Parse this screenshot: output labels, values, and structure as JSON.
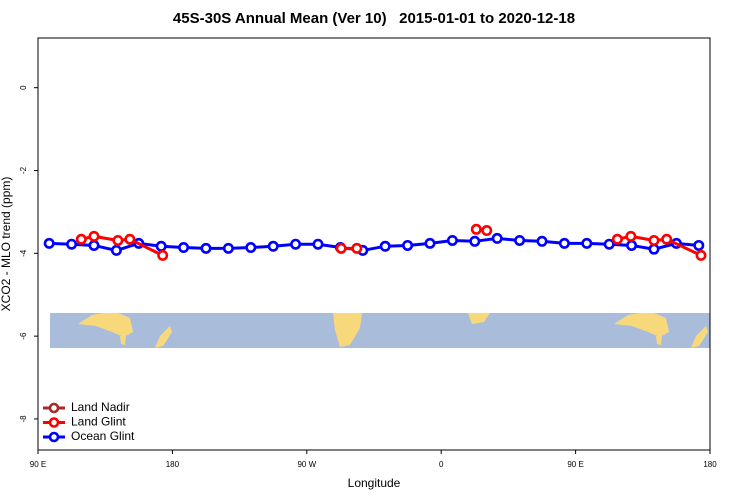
{
  "chart_data": {
    "type": "line",
    "title": "45S-30S Annual Mean (Ver 10)   2015-01-01 to 2020-12-18",
    "x_label": "Longitude",
    "y_label": "XCO2 - MLO trend (ppm)",
    "xlim": [
      90,
      540
    ],
    "ylim": [
      -8.75,
      1.2
    ],
    "xticks": [
      {
        "value": 90,
        "label": "90 E"
      },
      {
        "value": 180,
        "label": "180"
      },
      {
        "value": 270,
        "label": "90 W"
      },
      {
        "value": 360,
        "label": "0"
      },
      {
        "value": 450,
        "label": "90 E"
      },
      {
        "value": 540,
        "label": "180"
      }
    ],
    "yticks": [
      0,
      -2,
      -4,
      -6,
      -8
    ],
    "legend": "bottom-left",
    "series": [
      {
        "name": "Land Nadir",
        "color": "#a52a2a",
        "x": [],
        "values": []
      },
      {
        "name": "Land Glint",
        "color": "#ff0000",
        "x": [
          119,
          127.5,
          143.5,
          151.5,
          173.5,
          null,
          293,
          303.5,
          null,
          383.5,
          390.5,
          null,
          478,
          487,
          502.5,
          511,
          534
        ],
        "values": [
          -3.66,
          -3.59,
          -3.69,
          -3.66,
          -4.05,
          null,
          -3.88,
          -3.88,
          null,
          -3.42,
          -3.45,
          null,
          -3.66,
          -3.59,
          -3.69,
          -3.66,
          -4.05
        ]
      },
      {
        "name": "Ocean Glint",
        "color": "#0000ff",
        "x": [
          97.5,
          112.5,
          127.5,
          142.5,
          157.5,
          172.5,
          187.5,
          202.5,
          217.5,
          232.5,
          247.5,
          262.5,
          277.5,
          292.5,
          307.5,
          322.5,
          337.5,
          352.5,
          367.5,
          382.5,
          397.5,
          412.5,
          427.5,
          442.5,
          457.5,
          472.5,
          487.5,
          502.5,
          517.5,
          532.5
        ],
        "values": [
          -3.76,
          -3.78,
          -3.81,
          -3.93,
          -3.76,
          -3.83,
          -3.86,
          -3.88,
          -3.88,
          -3.86,
          -3.83,
          -3.78,
          -3.78,
          -3.86,
          -3.93,
          -3.83,
          -3.81,
          -3.76,
          -3.69,
          -3.71,
          -3.64,
          -3.69,
          -3.71,
          -3.76,
          -3.76,
          -3.78,
          -3.81,
          -3.9,
          -3.76,
          -3.81
        ]
      }
    ]
  }
}
